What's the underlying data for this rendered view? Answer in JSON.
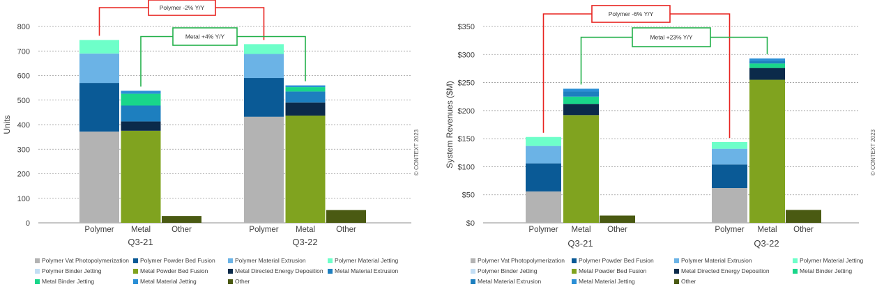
{
  "chart_data": [
    {
      "type": "bar",
      "stacked": true,
      "ylabel": "Units",
      "ylim": [
        0,
        800
      ],
      "yticks": [
        "0",
        "100",
        "200",
        "300",
        "400",
        "500",
        "600",
        "700",
        "800"
      ],
      "groups": [
        "Q3-21",
        "Q3-22"
      ],
      "categories": [
        "Polymer",
        "Metal",
        "Other"
      ],
      "watermark": "© CONTEXT 2023",
      "annotations": {
        "polymer": "Polymer -2% Y/Y",
        "metal": "Metal +4% Y/Y"
      },
      "bars": [
        {
          "group": "Q3-21",
          "category": "Polymer",
          "segments": [
            {
              "name": "Polymer Vat Photopolymerization",
              "value": 372
            },
            {
              "name": "Polymer Powder Bed Fusion",
              "value": 198
            },
            {
              "name": "Polymer Material Extrusion",
              "value": 120
            },
            {
              "name": "Polymer Material Jetting",
              "value": 55
            }
          ]
        },
        {
          "group": "Q3-21",
          "category": "Metal",
          "segments": [
            {
              "name": "Metal Powder Bed Fusion",
              "value": 375
            },
            {
              "name": "Metal Directed Energy Deposition",
              "value": 38
            },
            {
              "name": "Metal Material Extrusion",
              "value": 65
            },
            {
              "name": "Metal Binder Jetting",
              "value": 48
            },
            {
              "name": "Metal Material Jetting",
              "value": 12
            }
          ]
        },
        {
          "group": "Q3-21",
          "category": "Other",
          "segments": [
            {
              "name": "Other",
              "value": 28
            }
          ]
        },
        {
          "group": "Q3-22",
          "category": "Polymer",
          "segments": [
            {
              "name": "Polymer Vat Photopolymerization",
              "value": 432
            },
            {
              "name": "Polymer Powder Bed Fusion",
              "value": 158
            },
            {
              "name": "Polymer Material Extrusion",
              "value": 98
            },
            {
              "name": "Polymer Material Jetting",
              "value": 40
            }
          ]
        },
        {
          "group": "Q3-22",
          "category": "Metal",
          "segments": [
            {
              "name": "Metal Powder Bed Fusion",
              "value": 437
            },
            {
              "name": "Metal Directed Energy Deposition",
              "value": 53
            },
            {
              "name": "Metal Material Extrusion",
              "value": 45
            },
            {
              "name": "Metal Binder Jetting",
              "value": 18
            },
            {
              "name": "Metal Material Jetting",
              "value": 7
            }
          ]
        },
        {
          "group": "Q3-22",
          "category": "Other",
          "segments": [
            {
              "name": "Other",
              "value": 52
            }
          ]
        }
      ]
    },
    {
      "type": "bar",
      "stacked": true,
      "ylabel": "System Revenues ($M)",
      "ylim": [
        0,
        350
      ],
      "yticks": [
        "$0",
        "$50",
        "$100",
        "$150",
        "$200",
        "$250",
        "$300",
        "$350"
      ],
      "groups": [
        "Q3-21",
        "Q3-22"
      ],
      "categories": [
        "Polymer",
        "Metal",
        "Other"
      ],
      "watermark": "© CONTEXT 2023",
      "annotations": {
        "polymer": "Polymer -6% Y/Y",
        "metal": "Metal +23% Y/Y"
      },
      "bars": [
        {
          "group": "Q3-21",
          "category": "Polymer",
          "segments": [
            {
              "name": "Polymer Vat Photopolymerization",
              "value": 56
            },
            {
              "name": "Polymer Powder Bed Fusion",
              "value": 50
            },
            {
              "name": "Polymer Material Extrusion",
              "value": 31
            },
            {
              "name": "Polymer Material Jetting",
              "value": 16
            }
          ]
        },
        {
          "group": "Q3-21",
          "category": "Metal",
          "segments": [
            {
              "name": "Metal Powder Bed Fusion",
              "value": 192
            },
            {
              "name": "Metal Directed Energy Deposition",
              "value": 20
            },
            {
              "name": "Metal Binder Jetting",
              "value": 13
            },
            {
              "name": "Metal Material Extrusion",
              "value": 9
            },
            {
              "name": "Metal Material Jetting",
              "value": 5
            }
          ]
        },
        {
          "group": "Q3-21",
          "category": "Other",
          "segments": [
            {
              "name": "Other",
              "value": 13
            }
          ]
        },
        {
          "group": "Q3-22",
          "category": "Polymer",
          "segments": [
            {
              "name": "Polymer Vat Photopolymerization",
              "value": 62
            },
            {
              "name": "Polymer Powder Bed Fusion",
              "value": 42
            },
            {
              "name": "Polymer Material Extrusion",
              "value": 28
            },
            {
              "name": "Polymer Material Jetting",
              "value": 12
            }
          ]
        },
        {
          "group": "Q3-22",
          "category": "Metal",
          "segments": [
            {
              "name": "Metal Powder Bed Fusion",
              "value": 255
            },
            {
              "name": "Metal Directed Energy Deposition",
              "value": 21
            },
            {
              "name": "Metal Binder Jetting",
              "value": 8
            },
            {
              "name": "Metal Material Extrusion",
              "value": 5
            },
            {
              "name": "Metal Material Jetting",
              "value": 4
            }
          ]
        },
        {
          "group": "Q3-22",
          "category": "Other",
          "segments": [
            {
              "name": "Other",
              "value": 23
            }
          ]
        }
      ]
    }
  ],
  "series_colors": {
    "Polymer Vat Photopolymerization": "#b3b3b3",
    "Polymer Powder Bed Fusion": "#0a5a96",
    "Polymer Material Extrusion": "#6bb3e6",
    "Polymer Material Jetting": "#6effc9",
    "Polymer Binder Jetting": "#c3def4",
    "Metal Powder Bed Fusion": "#80a31f",
    "Metal Directed Energy Deposition": "#0b2a4a",
    "Metal Material Extrusion": "#1d7fbf",
    "Metal Binder Jetting": "#19d68a",
    "Metal Material Jetting": "#2a8fd6",
    "Other": "#4a5a12"
  },
  "legend_left": [
    "Polymer Vat Photopolymerization",
    "Polymer Powder Bed Fusion",
    "Polymer Material Extrusion",
    "Polymer Material Jetting",
    "Polymer Binder Jetting",
    "Metal Powder Bed Fusion",
    "Metal Directed Energy Deposition",
    "Metal Material Extrusion",
    "Metal Binder Jetting",
    "Metal Material Jetting",
    "Other"
  ],
  "legend_right": [
    "Polymer Vat Photopolymerization",
    "Polymer Powder Bed Fusion",
    "Polymer Material Extrusion",
    "Polymer Material Jetting",
    "Polymer Binder Jetting",
    "Metal Powder Bed Fusion",
    "Metal Directed Energy Deposition",
    "Metal Binder Jetting",
    "Metal Material Extrusion",
    "Metal Material Jetting",
    "Other"
  ],
  "annotation_colors": {
    "polymer": "#e8231f",
    "metal": "#22b04a"
  }
}
